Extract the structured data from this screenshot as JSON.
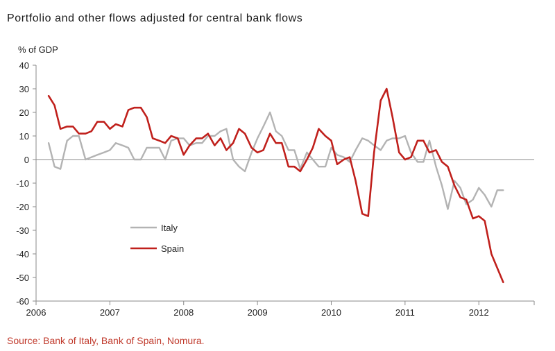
{
  "colors": {
    "italy": "#b3b3b3",
    "spain": "#c0201c",
    "axis": "#8a8a8a",
    "source": "#c0392b"
  },
  "chart_data": {
    "type": "line",
    "title": "Portfolio and other flows adjusted for central bank flows",
    "ylabel": "% of GDP",
    "xlabel": "",
    "ylim": [
      -60,
      40
    ],
    "xlim": [
      2006,
      2012.75
    ],
    "yticks": [
      40,
      30,
      20,
      10,
      0,
      -10,
      -20,
      -30,
      -40,
      -50,
      -60
    ],
    "xticks": [
      2006,
      2007,
      2008,
      2009,
      2010,
      2011,
      2012
    ],
    "grid": false,
    "legend_position": "lower-left",
    "series": [
      {
        "name": "Italy",
        "color": "#b3b3b3",
        "x": [
          2006.17,
          2006.25,
          2006.33,
          2006.42,
          2006.5,
          2006.58,
          2006.67,
          2006.75,
          2006.83,
          2006.92,
          2007.0,
          2007.08,
          2007.17,
          2007.25,
          2007.33,
          2007.42,
          2007.5,
          2007.58,
          2007.67,
          2007.75,
          2007.83,
          2007.92,
          2008.0,
          2008.08,
          2008.17,
          2008.25,
          2008.33,
          2008.42,
          2008.5,
          2008.58,
          2008.67,
          2008.75,
          2008.83,
          2008.92,
          2009.0,
          2009.08,
          2009.17,
          2009.25,
          2009.33,
          2009.42,
          2009.5,
          2009.58,
          2009.67,
          2009.75,
          2009.83,
          2009.92,
          2010.0,
          2010.08,
          2010.17,
          2010.25,
          2010.33,
          2010.42,
          2010.5,
          2010.58,
          2010.67,
          2010.75,
          2010.83,
          2010.92,
          2011.0,
          2011.08,
          2011.17,
          2011.25,
          2011.33,
          2011.42,
          2011.5,
          2011.58,
          2011.67,
          2011.75,
          2011.83,
          2011.92,
          2012.0,
          2012.08,
          2012.17,
          2012.25,
          2012.33
        ],
        "values": [
          7,
          -3,
          -4,
          8,
          10,
          10,
          0,
          1,
          2,
          3,
          4,
          7,
          6,
          5,
          0,
          0,
          5,
          5,
          5,
          0,
          8,
          9,
          9,
          6,
          7,
          7,
          10,
          10,
          12,
          13,
          0,
          -3,
          -5,
          3,
          9,
          14,
          20,
          12,
          10,
          4,
          4,
          -4,
          3,
          0,
          -3,
          -3,
          5,
          2,
          1,
          -1,
          4,
          9,
          8,
          6,
          4,
          8,
          9,
          9,
          10,
          3,
          -1,
          -1,
          8,
          -3,
          -11,
          -21,
          -9,
          -12,
          -19,
          -17,
          -12,
          -15,
          -20,
          -13,
          -13
        ]
      },
      {
        "name": "Spain",
        "color": "#c0201c",
        "x": [
          2006.17,
          2006.25,
          2006.33,
          2006.42,
          2006.5,
          2006.58,
          2006.67,
          2006.75,
          2006.83,
          2006.92,
          2007.0,
          2007.08,
          2007.17,
          2007.25,
          2007.33,
          2007.42,
          2007.5,
          2007.58,
          2007.67,
          2007.75,
          2007.83,
          2007.92,
          2008.0,
          2008.08,
          2008.17,
          2008.25,
          2008.33,
          2008.42,
          2008.5,
          2008.58,
          2008.67,
          2008.75,
          2008.83,
          2008.92,
          2009.0,
          2009.08,
          2009.17,
          2009.25,
          2009.33,
          2009.42,
          2009.5,
          2009.58,
          2009.67,
          2009.75,
          2009.83,
          2009.92,
          2010.0,
          2010.08,
          2010.17,
          2010.25,
          2010.33,
          2010.42,
          2010.5,
          2010.58,
          2010.67,
          2010.75,
          2010.83,
          2010.92,
          2011.0,
          2011.08,
          2011.17,
          2011.25,
          2011.33,
          2011.42,
          2011.5,
          2011.58,
          2011.67,
          2011.75,
          2011.83,
          2011.92,
          2012.0,
          2012.08,
          2012.17,
          2012.25,
          2012.33
        ],
        "values": [
          27,
          23,
          13,
          14,
          14,
          11,
          11,
          12,
          16,
          16,
          13,
          15,
          14,
          21,
          22,
          22,
          18,
          9,
          8,
          7,
          10,
          9,
          2,
          6,
          9,
          9,
          11,
          6,
          9,
          4,
          7,
          13,
          11,
          5,
          3,
          4,
          11,
          7,
          7,
          -3,
          -3,
          -5,
          0,
          5,
          13,
          10,
          8,
          -2,
          0,
          1,
          -9,
          -23,
          -24,
          3,
          25,
          30,
          18,
          3,
          0,
          1,
          8,
          8,
          3,
          4,
          -1,
          -3,
          -11,
          -16,
          -17,
          -25,
          -24,
          -26,
          -40,
          -46,
          -52
        ]
      }
    ]
  },
  "source": "Source: Bank of Italy, Bank of Spain, Nomura."
}
